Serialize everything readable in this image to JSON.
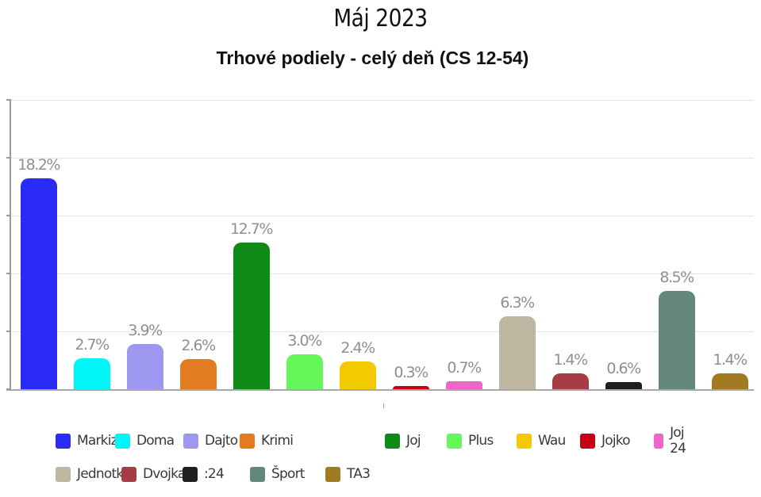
{
  "header": {
    "title": "Máj 2023",
    "subtitle": "Trhové podiely - celý deň (CS 12-54)"
  },
  "chart_data": {
    "type": "bar",
    "title": "Máj 2023",
    "subtitle": "Trhové podiely - celý deň (CS 12-54)",
    "xlabel": "",
    "ylabel": "",
    "ylim": [
      0,
      25
    ],
    "yticks": [
      0,
      5,
      10,
      15,
      20,
      25
    ],
    "y_tick_labels_visible": false,
    "grid": true,
    "legend_position": "bottom",
    "value_format": "percent",
    "categories": [
      "Markiza",
      "Doma",
      "Dajto",
      "Krimi",
      "Joj",
      "Plus",
      "Wau",
      "Jojko",
      "Joj 24",
      "Jednotka",
      "Dvojka",
      ":24",
      "Šport",
      "TA3"
    ],
    "values": [
      18.2,
      2.7,
      3.9,
      2.6,
      12.7,
      3.0,
      2.4,
      0.3,
      0.7,
      6.3,
      1.4,
      0.6,
      8.5,
      1.4
    ],
    "value_labels": [
      "18.2%",
      "2.7%",
      "3.9%",
      "2.6%",
      "12.7%",
      "3.0%",
      "2.4%",
      "0.3%",
      "0.7%",
      "6.3%",
      "1.4%",
      "0.6%",
      "8.5%",
      "1.4%"
    ],
    "colors": [
      "#2b2bf8",
      "#00f6f6",
      "#9d97f0",
      "#e37b22",
      "#0e8a17",
      "#66f75a",
      "#f3ca00",
      "#c90014",
      "#f065c9",
      "#bfb6a1",
      "#a53c46",
      "#1f1f1f",
      "#63877b",
      "#a27a22"
    ]
  },
  "legend": {
    "row1": [
      {
        "label": "Markiza",
        "color": "#2b2bf8"
      },
      {
        "label": "Doma",
        "color": "#00f6f6"
      },
      {
        "label": "Dajto",
        "color": "#9d97f0"
      },
      {
        "label": "Krimi",
        "color": "#e37b22"
      },
      {
        "label": "Joj",
        "color": "#0e8a17"
      },
      {
        "label": "Plus",
        "color": "#66f75a"
      },
      {
        "label": "Wau",
        "color": "#f3ca00"
      },
      {
        "label": "Jojko",
        "color": "#c90014"
      },
      {
        "label": "Joj 24",
        "color": "#f065c9"
      }
    ],
    "row2": [
      {
        "label": "Jednotka",
        "color": "#bfb6a1"
      },
      {
        "label": "Dvojka",
        "color": "#a53c46"
      },
      {
        "label": ":24",
        "color": "#1f1f1f"
      },
      {
        "label": "Šport",
        "color": "#63877b"
      },
      {
        "label": "TA3",
        "color": "#a27a22"
      }
    ]
  }
}
